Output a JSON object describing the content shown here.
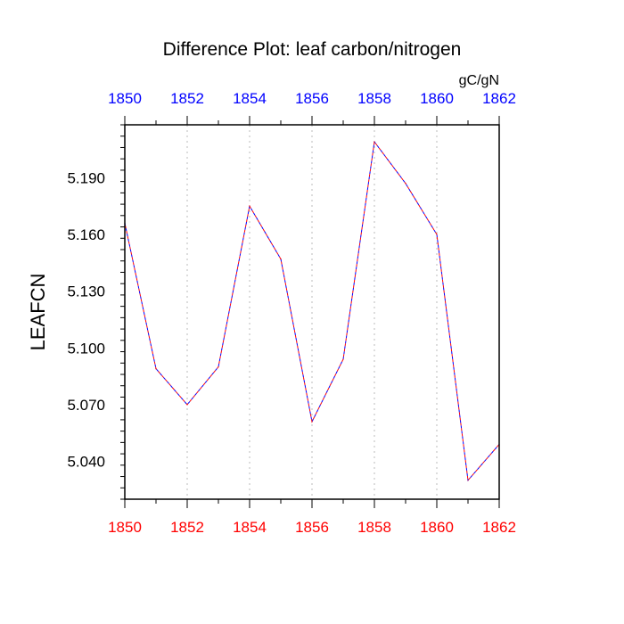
{
  "chart_data": {
    "type": "line",
    "title": "Difference Plot: leaf carbon/nitrogen",
    "units": "gC/gN",
    "ylabel": "LEAFCN",
    "xlabel": "",
    "xlim": [
      1850,
      1862
    ],
    "ylim": [
      5.02,
      5.218
    ],
    "x_ticks": [
      "1850",
      "1852",
      "1854",
      "1856",
      "1858",
      "1860",
      "1862"
    ],
    "y_ticks": [
      "5.040",
      "5.070",
      "5.100",
      "5.130",
      "5.160",
      "5.190"
    ],
    "x_minor_step": 1,
    "y_minor_step": 0.006,
    "grid": "vertical dotted at major x ticks",
    "colors": {
      "top_axis_labels": "#0000ff",
      "bottom_axis_labels": "#ff0000",
      "series_a": "#0000ff",
      "series_b": "#ff0000",
      "grid": "#bbbbbb",
      "axis": "#000000"
    },
    "series": [
      {
        "name": "series_a",
        "x": [
          1850,
          1851,
          1852,
          1853,
          1854,
          1855,
          1856,
          1857,
          1858,
          1859,
          1860,
          1861,
          1862
        ],
        "values": [
          5.166,
          5.089,
          5.07,
          5.09,
          5.175,
          5.147,
          5.061,
          5.094,
          5.209,
          5.187,
          5.16,
          5.03,
          5.049
        ]
      },
      {
        "name": "series_b",
        "x": [
          1850,
          1851,
          1852,
          1853,
          1854,
          1855,
          1856,
          1857,
          1858,
          1859,
          1860,
          1861,
          1862
        ],
        "values": [
          5.166,
          5.089,
          5.07,
          5.09,
          5.175,
          5.147,
          5.061,
          5.094,
          5.209,
          5.187,
          5.16,
          5.03,
          5.049
        ]
      }
    ]
  }
}
